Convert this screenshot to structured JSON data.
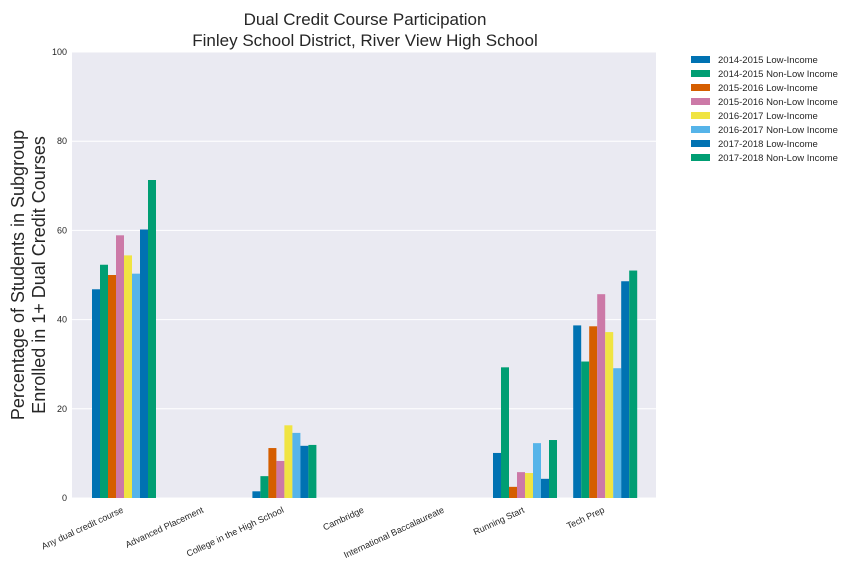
{
  "chart_data": {
    "type": "bar",
    "title": "Dual Credit Course Participation",
    "subtitle": "Finley School District, River View High School",
    "ylabel_lines": [
      "Percentage of Students in Subgroup",
      "Enrolled in 1+ Dual Credit Courses"
    ],
    "xlabel": "",
    "ylim": [
      0,
      100
    ],
    "yticks": [
      0,
      20,
      40,
      60,
      80,
      100
    ],
    "grid": true,
    "legend_position": "outside-top-right",
    "categories": [
      "Any dual credit course",
      "Advanced Placement",
      "College in the High School",
      "Cambridge",
      "International Baccalaureate",
      "Running Start",
      "Tech Prep"
    ],
    "series": [
      {
        "name": "2014-2015 Low-Income",
        "color": "#0072b2",
        "values": [
          46.8,
          0,
          1.5,
          0,
          0,
          10.1,
          38.7
        ]
      },
      {
        "name": "2014-2015 Non-Low Income",
        "color": "#009e73",
        "values": [
          52.3,
          0,
          4.9,
          0,
          0,
          29.3,
          30.6
        ]
      },
      {
        "name": "2015-2016 Low-Income",
        "color": "#d55e00",
        "values": [
          50.0,
          0,
          11.2,
          0,
          0,
          2.5,
          38.5
        ]
      },
      {
        "name": "2015-2016 Non-Low Income",
        "color": "#cc79a7",
        "values": [
          58.9,
          0,
          8.3,
          0,
          0,
          5.8,
          45.7
        ]
      },
      {
        "name": "2016-2017 Low-Income",
        "color": "#f0e442",
        "values": [
          54.4,
          0,
          16.3,
          0,
          0,
          5.6,
          37.2
        ]
      },
      {
        "name": "2016-2017 Non-Low Income",
        "color": "#56b4e9",
        "values": [
          50.3,
          0,
          14.6,
          0,
          0,
          12.3,
          29.1
        ]
      },
      {
        "name": "2017-2018 Low-Income",
        "color": "#0072b2",
        "values": [
          60.2,
          0,
          11.7,
          0,
          0,
          4.3,
          48.6
        ]
      },
      {
        "name": "2017-2018 Non-Low Income",
        "color": "#009e73",
        "values": [
          71.3,
          0,
          11.9,
          0,
          0,
          13.0,
          51.0
        ]
      }
    ]
  }
}
